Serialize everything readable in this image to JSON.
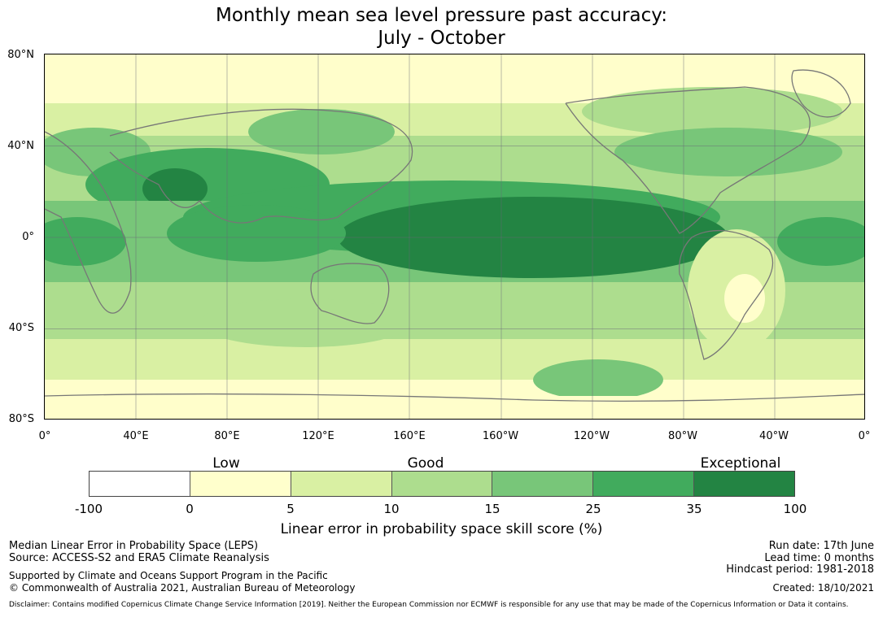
{
  "title": {
    "line1": "Monthly mean sea level pressure past accuracy:",
    "line2": "July - October"
  },
  "map": {
    "lat_labels": [
      "80°N",
      "40°N",
      "0°",
      "40°S",
      "80°S"
    ],
    "lon_labels": [
      "0°",
      "40°E",
      "80°E",
      "120°E",
      "160°E",
      "160°W",
      "120°W",
      "80°W",
      "40°W",
      "0°"
    ],
    "region_legend_levels": {
      "scale": [
        "<0 (white)",
        "0-5",
        "5-10",
        "10-15",
        "15-25",
        "25-35",
        "35-100"
      ],
      "notes": "Equatorial Pacific band highest skill (35-100); high latitudes mostly 0-10"
    }
  },
  "colorbar": {
    "colors": [
      "#ffffff",
      "#ffffcc",
      "#d9f0a3",
      "#addd8e",
      "#78c679",
      "#41ab5d",
      "#238443"
    ],
    "tick_labels": [
      "-100",
      "0",
      "5",
      "10",
      "15",
      "25",
      "35",
      "100"
    ],
    "category_labels": [
      "Low",
      "Good",
      "Exceptional"
    ],
    "axis_label": "Linear error in probability space skill score (%)"
  },
  "footer": {
    "left1": "Median Linear Error in Probability Space (LEPS)",
    "left2": "Source: ACCESS-S2 and ERA5 Climate Reanalysis",
    "left3": "Supported by Climate and Oceans Support Program in the Pacific",
    "left4": "© Commonwealth of Australia 2021, Australian Bureau of Meteorology",
    "right1": "Run date: 17th June",
    "right2": "Lead time: 0 months",
    "right3": "Hindcast period: 1981-2018",
    "right4": "Created: 18/10/2021",
    "disclaimer": "Disclaimer: Contains modified Copernicus Climate Change Service Information [2019]. Neither the European Commission nor ECMWF is responsible for any use that may be made of the Copernicus Information or Data it contains."
  }
}
